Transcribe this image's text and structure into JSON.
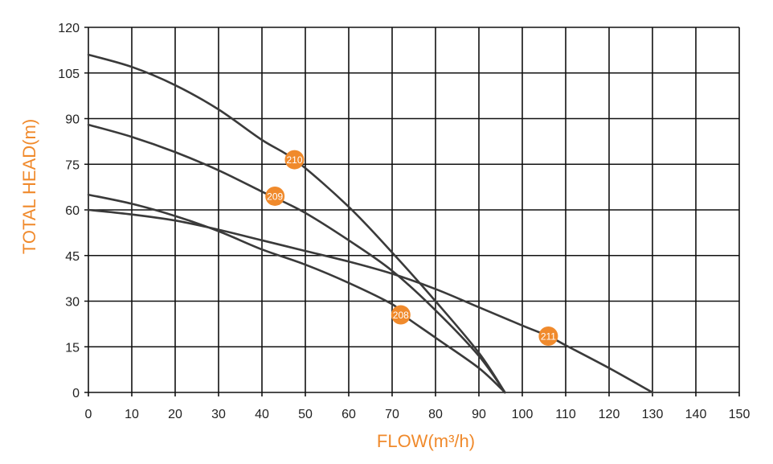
{
  "chart_data": {
    "type": "line",
    "title": "",
    "xlabel": "FLOW(m³/h)",
    "ylabel": "TOTAL HEAD(m)",
    "xlim": [
      0,
      150
    ],
    "ylim": [
      0,
      120
    ],
    "xticks": [
      0,
      10,
      20,
      30,
      40,
      50,
      60,
      70,
      80,
      90,
      100,
      110,
      120,
      130,
      140,
      150
    ],
    "yticks": [
      0,
      15,
      30,
      45,
      60,
      75,
      90,
      105,
      120
    ],
    "grid": true,
    "series": [
      {
        "name": "210",
        "x": [
          0,
          10,
          20,
          30,
          40,
          48,
          60,
          70,
          80,
          90,
          96
        ],
        "y": [
          111,
          107,
          101,
          93,
          83,
          76,
          61,
          46,
          30,
          13,
          0
        ],
        "label_at": [
          47.5,
          76.5
        ]
      },
      {
        "name": "209",
        "x": [
          0,
          10,
          20,
          30,
          40,
          43,
          50,
          60,
          70,
          80,
          90,
          96
        ],
        "y": [
          88,
          84,
          79,
          73,
          66,
          64,
          59,
          50,
          40,
          27,
          12,
          0
        ],
        "label_at": [
          43,
          64.5
        ]
      },
      {
        "name": "208",
        "x": [
          0,
          10,
          20,
          30,
          40,
          50,
          60,
          70,
          72,
          80,
          90,
          96
        ],
        "y": [
          65,
          62,
          58,
          53,
          47,
          42,
          36,
          29,
          26,
          18,
          8,
          0
        ],
        "label_at": [
          72,
          25.5
        ]
      },
      {
        "name": "211",
        "x": [
          0,
          10,
          20,
          30,
          40,
          50,
          60,
          70,
          80,
          90,
          100,
          106,
          110,
          120,
          130
        ],
        "y": [
          60,
          58.5,
          56.5,
          53.5,
          50,
          46.5,
          43,
          39,
          34,
          28,
          22,
          18.5,
          15.5,
          8,
          0
        ],
        "label_at": [
          106,
          18.5
        ]
      }
    ],
    "colors": {
      "axis_title": "#f08a2c",
      "marker": "#f08a2c",
      "marker_text": "#ffffff",
      "curve": "#3a3a3a",
      "grid": "#111111"
    }
  }
}
